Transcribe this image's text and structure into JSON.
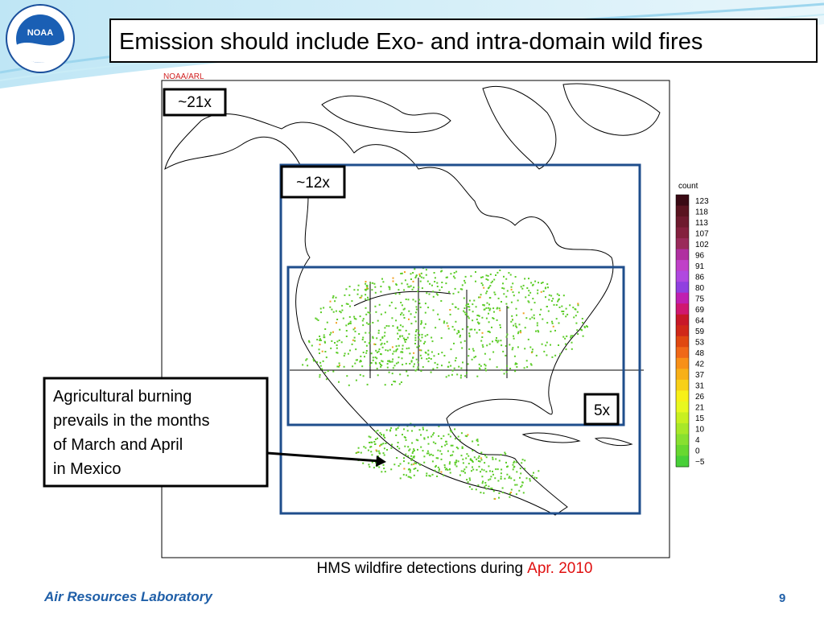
{
  "header": {
    "title": "Emission should include Exo- and intra-domain wild fires"
  },
  "map": {
    "credit": "NOAA/ARL",
    "domains": [
      {
        "label": "~21x"
      },
      {
        "label": "~12x"
      },
      {
        "label": "5x"
      }
    ],
    "colorbar": {
      "title": "count",
      "labels": [
        "123",
        "118",
        "113",
        "107",
        "102",
        "96",
        "91",
        "86",
        "80",
        "75",
        "69",
        "64",
        "59",
        "53",
        "48",
        "42",
        "37",
        "31",
        "26",
        "21",
        "15",
        "10",
        "4",
        "0",
        "−5"
      ],
      "colors": [
        "#3a0a14",
        "#5a1420",
        "#6e1a2e",
        "#84203e",
        "#9a2a5a",
        "#b030a0",
        "#c040c8",
        "#b048e0",
        "#9040e0",
        "#c020b0",
        "#d01870",
        "#c81828",
        "#d02818",
        "#e04810",
        "#f06818",
        "#f89018",
        "#f8b018",
        "#f8d018",
        "#f8f018",
        "#e8f820",
        "#c8f020",
        "#a8e828",
        "#88e030",
        "#68d830",
        "#48d038"
      ]
    },
    "caption": {
      "text": "HMS wildfire detections during",
      "date": "Apr. 2010"
    }
  },
  "callout": {
    "lines": [
      "Agricultural burning",
      "prevails in the months",
      "of March and April",
      "in Mexico"
    ]
  },
  "footer": {
    "organization": "Air Resources Laboratory",
    "page": "9"
  }
}
